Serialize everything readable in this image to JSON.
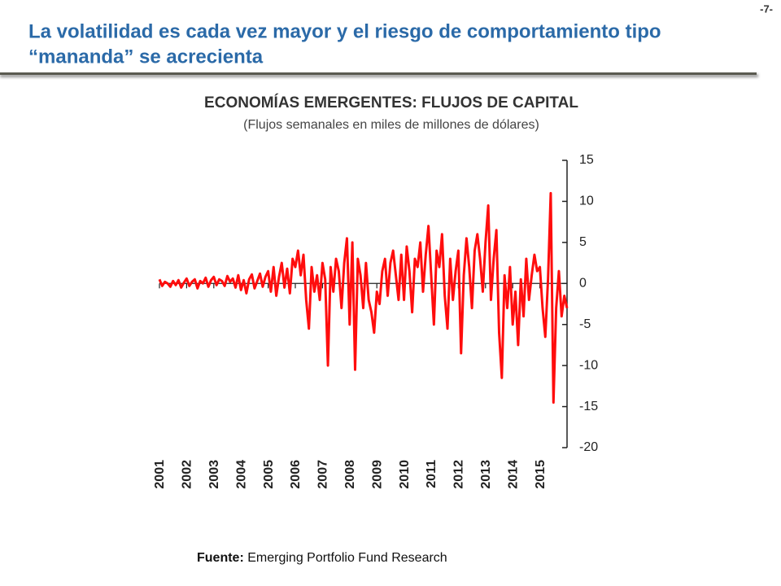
{
  "page": {
    "number": "-7-",
    "title_lines": [
      "La volatilidad es cada vez mayor y el riesgo de comportamiento tipo",
      "“mananda” se acrecienta"
    ],
    "source_label": "Fuente:",
    "source_text": "Emerging Portfolio Fund Research"
  },
  "chart_data": {
    "type": "line",
    "title": "ECONOMÍAS EMERGENTES: FLUJOS DE CAPITAL",
    "subtitle": "(Flujos semanales en miles de millones de dólares)",
    "x": [
      2001,
      2001.1,
      2001.2,
      2001.3,
      2001.4,
      2001.5,
      2001.6,
      2001.7,
      2001.8,
      2001.9,
      2002,
      2002.1,
      2002.2,
      2002.3,
      2002.4,
      2002.5,
      2002.6,
      2002.7,
      2002.8,
      2002.9,
      2003,
      2003.1,
      2003.2,
      2003.3,
      2003.4,
      2003.5,
      2003.6,
      2003.7,
      2003.8,
      2003.9,
      2004,
      2004.1,
      2004.2,
      2004.3,
      2004.4,
      2004.5,
      2004.6,
      2004.7,
      2004.8,
      2004.9,
      2005,
      2005.1,
      2005.2,
      2005.3,
      2005.4,
      2005.5,
      2005.6,
      2005.7,
      2005.8,
      2005.9,
      2006,
      2006.1,
      2006.2,
      2006.3,
      2006.4,
      2006.5,
      2006.6,
      2006.7,
      2006.8,
      2006.9,
      2007,
      2007.1,
      2007.2,
      2007.3,
      2007.4,
      2007.5,
      2007.6,
      2007.7,
      2007.8,
      2007.9,
      2008,
      2008.1,
      2008.2,
      2008.3,
      2008.4,
      2008.5,
      2008.6,
      2008.7,
      2008.8,
      2008.9,
      2009,
      2009.1,
      2009.2,
      2009.3,
      2009.4,
      2009.5,
      2009.6,
      2009.7,
      2009.8,
      2009.9,
      2010,
      2010.1,
      2010.2,
      2010.3,
      2010.4,
      2010.5,
      2010.6,
      2010.7,
      2010.8,
      2010.9,
      2011,
      2011.1,
      2011.2,
      2011.3,
      2011.4,
      2011.5,
      2011.6,
      2011.7,
      2011.8,
      2011.9,
      2012,
      2012.1,
      2012.2,
      2012.3,
      2012.4,
      2012.5,
      2012.6,
      2012.7,
      2012.8,
      2012.9,
      2013,
      2013.1,
      2013.2,
      2013.3,
      2013.4,
      2013.5,
      2013.6,
      2013.7,
      2013.8,
      2013.9,
      2014,
      2014.1,
      2014.2,
      2014.3,
      2014.4,
      2014.5,
      2014.6,
      2014.7,
      2014.8,
      2014.9,
      2015,
      2015.1,
      2015.2,
      2015.3,
      2015.4,
      2015.5,
      2015.6,
      2015.7,
      2015.8,
      2015.9,
      2016
    ],
    "series": [
      {
        "color": "#ff0d0d",
        "values": [
          0.5,
          -0.3,
          0.2,
          0,
          -0.4,
          0.3,
          -0.2,
          0.4,
          -0.5,
          0.1,
          0.6,
          -0.3,
          0.2,
          0.5,
          -0.6,
          0.3,
          0,
          0.7,
          -0.4,
          0.4,
          0.8,
          -0.2,
          0.5,
          0.3,
          -0.3,
          0.9,
          0.2,
          0.6,
          -0.5,
          1.0,
          -0.8,
          0.4,
          -1.2,
          0.5,
          1.1,
          -0.6,
          0.3,
          1.2,
          -0.4,
          0.8,
          1.5,
          -1.0,
          2.0,
          -1.5,
          0.8,
          2.5,
          -0.5,
          1.8,
          -1.2,
          3.0,
          2.0,
          4.0,
          1.0,
          3.5,
          -2.0,
          -5.5,
          2.0,
          -1.0,
          1.0,
          -2.0,
          2.5,
          0.5,
          -10.0,
          2.0,
          -1.0,
          3.0,
          1.5,
          -3.0,
          2.5,
          5.5,
          -5.0,
          5.0,
          -10.5,
          3.0,
          1.0,
          -3.0,
          2.5,
          -2.0,
          -3.5,
          -6.0,
          -1.0,
          -2.5,
          1.5,
          3.0,
          -1.5,
          2.5,
          4.0,
          1.0,
          -2.0,
          3.5,
          -2.0,
          4.5,
          1.5,
          -3.5,
          3.0,
          2.0,
          5.0,
          -1.0,
          3.5,
          7.0,
          1.0,
          -5.0,
          4.0,
          2.0,
          6.0,
          -1.5,
          -5.5,
          3.0,
          -2.0,
          1.5,
          4.0,
          -8.5,
          1.0,
          5.5,
          2.0,
          -3.0,
          4.0,
          6.0,
          3.0,
          -1.0,
          5.0,
          9.5,
          -2.0,
          3.0,
          6.5,
          -6.0,
          -11.5,
          1.0,
          -3.0,
          2.0,
          -5.0,
          -1.0,
          -7.5,
          0.5,
          -4.0,
          3.0,
          -2.0,
          1.0,
          3.5,
          1.5,
          2.0,
          -3.0,
          -6.5,
          0.5,
          11.0,
          -14.5,
          -3.0,
          1.5,
          -4.0,
          -1.5,
          -3.0
        ]
      }
    ],
    "xlim": [
      2001,
      2016
    ],
    "xticks": [
      2001,
      2002,
      2003,
      2004,
      2005,
      2006,
      2007,
      2008,
      2009,
      2010,
      2011,
      2012,
      2013,
      2014,
      2015
    ],
    "ylim": [
      -20,
      15
    ],
    "yticks": [
      15,
      10,
      5,
      0,
      -5,
      -10,
      -15,
      -20
    ],
    "y_axis_side": "right",
    "grid": false
  }
}
